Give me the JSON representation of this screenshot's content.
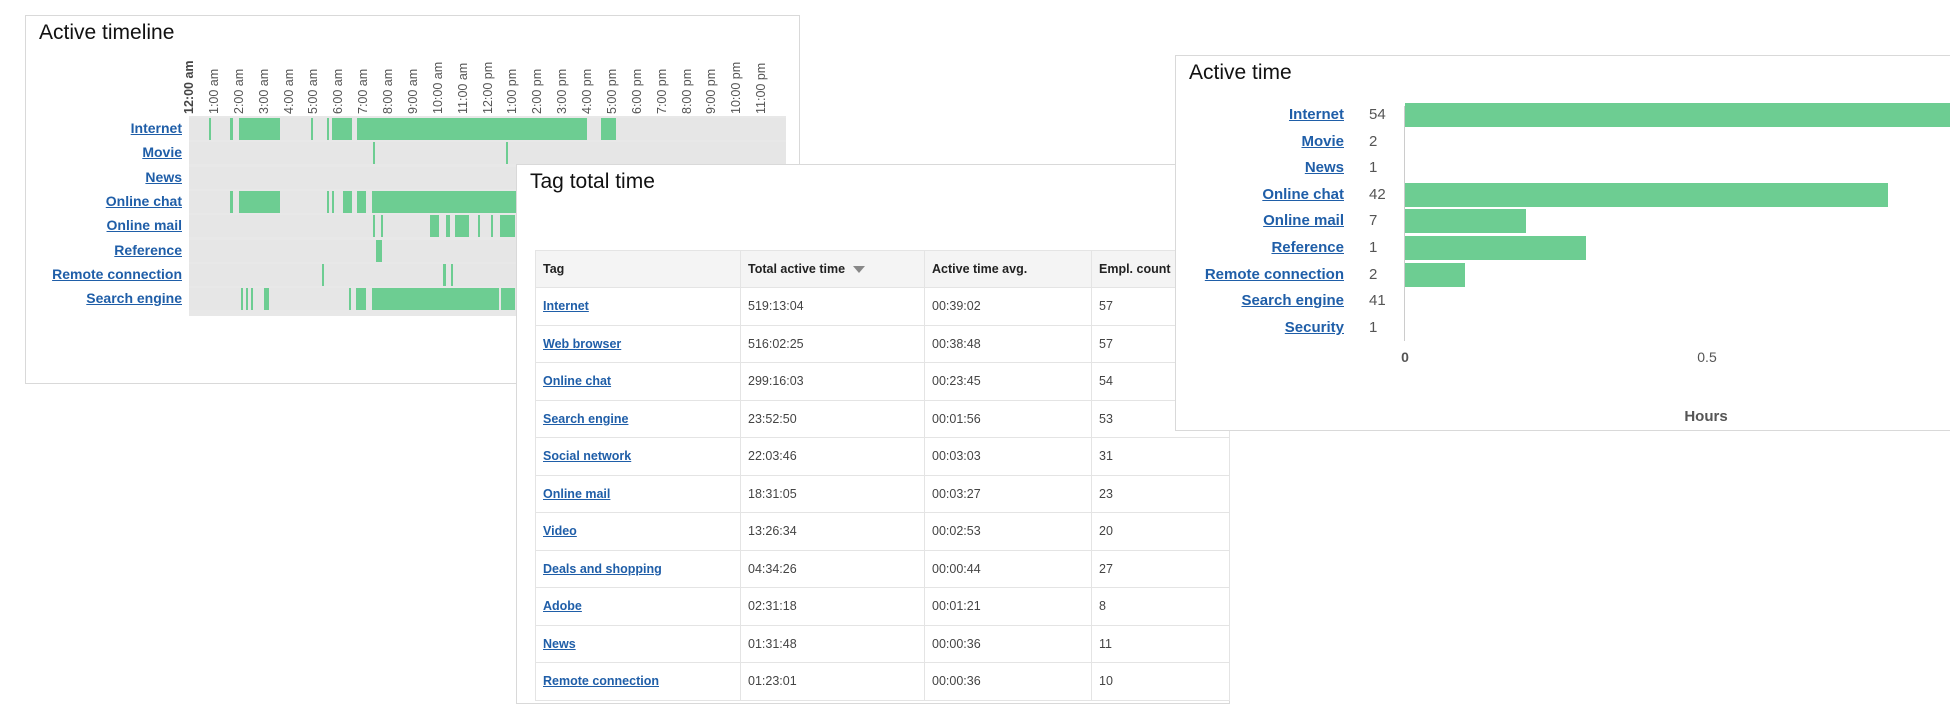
{
  "colors": {
    "active": "#6dcd92",
    "idle": "#e6e6e6",
    "link": "#1f5ea8"
  },
  "timeline": {
    "title": "Active timeline",
    "tags": [
      "Internet",
      "Movie",
      "News",
      "Online chat",
      "Online mail",
      "Reference",
      "Remote connection",
      "Search engine"
    ],
    "hour_labels": [
      "12:00 am",
      "1:00 am",
      "2:00 am",
      "3:00 am",
      "4:00 am",
      "5:00 am",
      "6:00 am",
      "7:00 am",
      "8:00 am",
      "9:00 am",
      "10:00 am",
      "11:00 am",
      "12:00 pm",
      "1:00 pm",
      "2:00 pm",
      "3:00 pm",
      "4:00 pm",
      "5:00 pm",
      "6:00 pm",
      "7:00 pm",
      "8:00 pm",
      "9:00 pm",
      "10:00 pm",
      "11:00 pm"
    ],
    "activity_hours": [
      [
        [
          0.8,
          0.85
        ],
        [
          1.65,
          1.75
        ],
        [
          2.0,
          3.65
        ],
        [
          4.9,
          4.95
        ],
        [
          5.55,
          5.6
        ],
        [
          5.75,
          6.55
        ],
        [
          6.75,
          16.0
        ],
        [
          16.55,
          17.15
        ]
      ],
      [
        [
          7.4,
          7.45
        ],
        [
          12.75,
          12.8
        ]
      ],
      [
        [
          14.95,
          15.0
        ]
      ],
      [
        [
          1.65,
          1.75
        ],
        [
          2.0,
          3.65
        ],
        [
          5.55,
          5.6
        ],
        [
          5.75,
          5.8
        ],
        [
          6.2,
          6.55
        ],
        [
          6.75,
          7.1
        ],
        [
          7.35,
          16.0
        ]
      ],
      [
        [
          7.4,
          7.45
        ],
        [
          7.7,
          7.75
        ],
        [
          9.7,
          10.05
        ],
        [
          10.35,
          10.5
        ],
        [
          10.7,
          11.25
        ],
        [
          11.6,
          11.65
        ],
        [
          12.15,
          12.2
        ],
        [
          12.5,
          13.1
        ]
      ],
      [
        [
          7.5,
          7.75
        ]
      ],
      [
        [
          5.35,
          5.4
        ],
        [
          10.2,
          10.35
        ],
        [
          10.55,
          10.6
        ]
      ],
      [
        [
          2.1,
          2.15
        ],
        [
          2.3,
          2.35
        ],
        [
          2.5,
          2.55
        ],
        [
          3.0,
          3.2
        ],
        [
          6.45,
          6.5
        ],
        [
          6.7,
          7.1
        ],
        [
          7.35,
          12.45
        ],
        [
          12.55,
          13.1
        ]
      ]
    ]
  },
  "tag_table": {
    "title": "Tag total time",
    "columns": [
      "Tag",
      "Total active time",
      "Active time avg.",
      "Empl. count"
    ],
    "sorted_column": "Total active time",
    "rows": [
      [
        "Internet",
        "519:13:04",
        "00:39:02",
        "57"
      ],
      [
        "Web browser",
        "516:02:25",
        "00:38:48",
        "57"
      ],
      [
        "Online chat",
        "299:16:03",
        "00:23:45",
        "54"
      ],
      [
        "Search engine",
        "23:52:50",
        "00:01:56",
        "53"
      ],
      [
        "Social network",
        "22:03:46",
        "00:03:03",
        "31"
      ],
      [
        "Online mail",
        "18:31:05",
        "00:03:27",
        "23"
      ],
      [
        "Video",
        "13:26:34",
        "00:02:53",
        "20"
      ],
      [
        "Deals and shopping",
        "04:34:26",
        "00:00:44",
        "27"
      ],
      [
        "Adobe",
        "02:31:18",
        "00:01:21",
        "8"
      ],
      [
        "News",
        "01:31:48",
        "00:00:36",
        "11"
      ],
      [
        "Remote connection",
        "01:23:01",
        "00:00:36",
        "10"
      ]
    ]
  },
  "active_time": {
    "title": "Active time",
    "x_axis_label": "Hours",
    "x_ticks": [
      "0",
      "0.5"
    ],
    "rows": [
      {
        "tag": "Internet",
        "count": "54",
        "hours": 0.95
      },
      {
        "tag": "Movie",
        "count": "2",
        "hours": 0
      },
      {
        "tag": "News",
        "count": "1",
        "hours": 0
      },
      {
        "tag": "Online chat",
        "count": "42",
        "hours": 0.8
      },
      {
        "tag": "Online mail",
        "count": "7",
        "hours": 0.2
      },
      {
        "tag": "Reference",
        "count": "1",
        "hours": 0.3
      },
      {
        "tag": "Remote connection",
        "count": "2",
        "hours": 0.1
      },
      {
        "tag": "Search engine",
        "count": "41",
        "hours": 0
      },
      {
        "tag": "Security",
        "count": "1",
        "hours": 0
      }
    ]
  }
}
